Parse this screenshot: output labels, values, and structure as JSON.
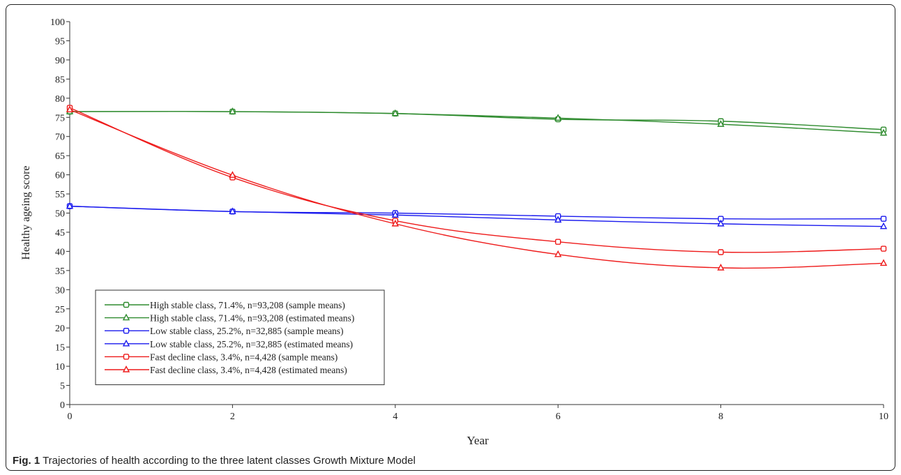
{
  "caption": {
    "label": "Fig. 1",
    "text": "Trajectories of health according to the three latent classes Growth Mixture Model"
  },
  "chart_data": {
    "type": "line",
    "xlabel": "Year",
    "ylabel": "Healthy ageing score",
    "xlim": [
      0,
      10
    ],
    "ylim": [
      0,
      100
    ],
    "xticks": [
      0,
      2,
      4,
      6,
      8,
      10
    ],
    "yticks": [
      0,
      5,
      10,
      15,
      20,
      25,
      30,
      35,
      40,
      45,
      50,
      55,
      60,
      65,
      70,
      75,
      80,
      85,
      90,
      95,
      100
    ],
    "grid": false,
    "legend_position": "bottom-left",
    "x": [
      0,
      2,
      4,
      6,
      8,
      10
    ],
    "series": [
      {
        "name": "High stable class, 71.4%, n=93,208 (sample means)",
        "color": "#2e8b2e",
        "marker": "square",
        "values": [
          76.5,
          76.5,
          76.0,
          74.5,
          74.0,
          71.8
        ]
      },
      {
        "name": "High stable class, 71.4%, n=93,208 (estimated means)",
        "color": "#2e8b2e",
        "marker": "triangle",
        "values": [
          76.5,
          76.5,
          76.0,
          74.8,
          73.2,
          70.9
        ]
      },
      {
        "name": "Low stable class, 25.2%, n=32,885 (sample means)",
        "color": "#1a1aee",
        "marker": "square",
        "values": [
          51.8,
          50.4,
          50.0,
          49.2,
          48.5,
          48.5
        ]
      },
      {
        "name": "Low stable class, 25.2%, n=32,885 (estimated means)",
        "color": "#1a1aee",
        "marker": "triangle",
        "values": [
          51.8,
          50.4,
          49.5,
          48.2,
          47.2,
          46.5
        ]
      },
      {
        "name": "Fast decline class, 3.4%, n=4,428 (sample means)",
        "color": "#ee1a1a",
        "marker": "square",
        "values": [
          77.5,
          59.3,
          48.0,
          42.5,
          39.8,
          40.7
        ]
      },
      {
        "name": "Fast decline class, 3.4%, n=4,428 (estimated means)",
        "color": "#ee1a1a",
        "marker": "triangle",
        "values": [
          77.0,
          59.9,
          47.2,
          39.2,
          35.7,
          36.9
        ]
      }
    ]
  }
}
